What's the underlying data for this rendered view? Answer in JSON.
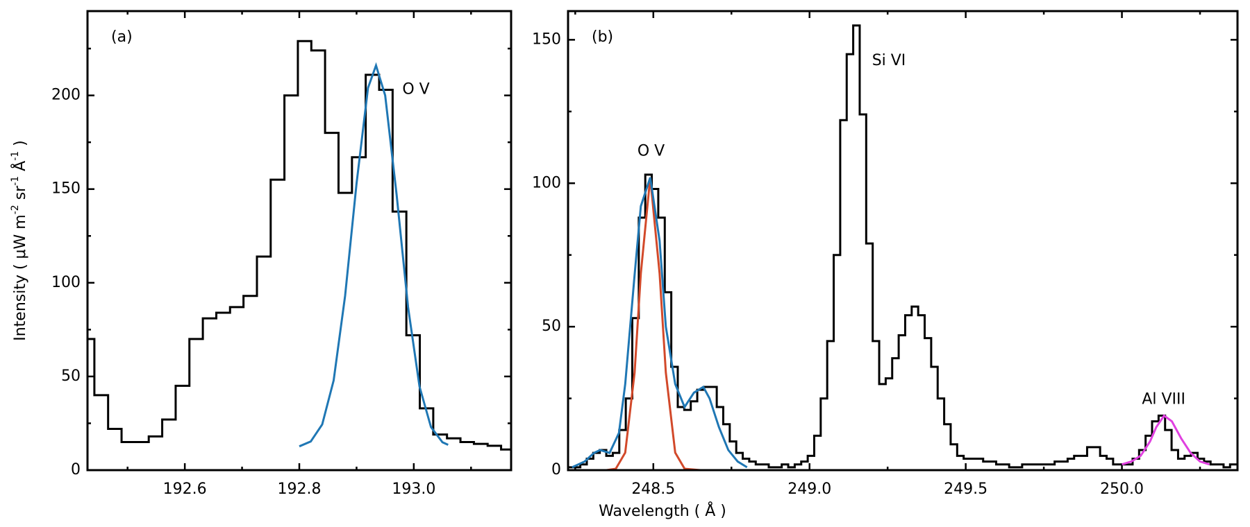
{
  "chart_data": [
    {
      "type": "line",
      "panel_label": "(a)",
      "ylabel": [
        "Intensity ( μW m",
        "-2",
        " sr",
        "-1",
        " Å",
        "-1",
        " )"
      ],
      "xlim": [
        192.43,
        193.17
      ],
      "xticks": [
        192.6,
        192.8,
        {
          "value": 193,
          "label": "193.0"
        }
      ],
      "xminorticks": [
        192.5,
        192.7,
        192.9,
        193.1
      ],
      "ylim": [
        0,
        245
      ],
      "yticks": [
        0,
        50,
        100,
        150,
        200
      ],
      "yminorticks": [
        25,
        75,
        125,
        175,
        225
      ],
      "annotations": [
        {
          "text": "O V",
          "x": 192.98,
          "y": 203
        }
      ],
      "series": [
        {
          "type": "step",
          "color": "#000000",
          "x": [
            192.43,
            192.454,
            192.478,
            192.501,
            192.525,
            192.549,
            192.572,
            192.596,
            192.62,
            192.643,
            192.667,
            192.691,
            192.714,
            192.738,
            192.762,
            192.786,
            192.809,
            192.833,
            192.857,
            192.88,
            192.904,
            192.928,
            192.951,
            192.975,
            192.999,
            193.022,
            193.046,
            193.07,
            193.093,
            193.117,
            193.141,
            193.164
          ],
          "values": [
            70,
            40,
            22,
            15,
            15,
            18,
            27,
            45,
            70,
            81,
            84,
            87,
            93,
            114,
            155,
            200,
            229,
            224,
            180,
            148,
            167,
            211,
            203,
            138,
            72,
            33,
            19,
            17,
            15,
            14,
            13,
            11
          ]
        },
        {
          "type": "line",
          "color": "#1f77b4",
          "x": [
            192.8,
            192.82,
            192.84,
            192.86,
            192.88,
            192.9,
            192.92,
            192.934,
            192.95,
            192.97,
            192.99,
            193.01,
            193.03,
            193.05,
            193.06
          ],
          "values": [
            12.7,
            15.3,
            24.4,
            47.9,
            93,
            153,
            204,
            216,
            200,
            147,
            87,
            44.6,
            23,
            14.9,
            13.5
          ]
        }
      ]
    },
    {
      "type": "line",
      "panel_label": "(b)",
      "xlabel": "Wavelength ( Å )",
      "xlim": [
        248.227,
        250.37
      ],
      "xticks": [
        248.5,
        {
          "value": 249,
          "label": "249.0"
        },
        249.5,
        {
          "value": 250,
          "label": "250.0"
        }
      ],
      "xminorticks": [
        248.25,
        248.75,
        249.25,
        249.75,
        250.25
      ],
      "ylim": [
        0,
        160
      ],
      "yticks": [
        0,
        50,
        100,
        150
      ],
      "yminorticks": [
        25,
        75,
        125
      ],
      "annotations": [
        {
          "text": "O V",
          "x": 248.449,
          "y": 111
        },
        {
          "text": "Si VI",
          "x": 249.2,
          "y": 142.6
        },
        {
          "text": "Al VIII",
          "x": 250.064,
          "y": 24.5
        }
      ],
      "series": [
        {
          "type": "step",
          "color": "#000000",
          "x": [
            248.235,
            248.2558,
            248.2766,
            248.2974,
            248.3182,
            248.339,
            248.3598,
            248.3806,
            248.4014,
            248.4222,
            248.443,
            248.4638,
            248.4846,
            248.5054,
            248.5262,
            248.547,
            248.5678,
            248.5886,
            248.6094,
            248.6302,
            248.651,
            248.6718,
            248.6926,
            248.7134,
            248.7342,
            248.755,
            248.7758,
            248.7966,
            248.8174,
            248.8382,
            248.859,
            248.8798,
            248.9006,
            248.9214,
            248.9422,
            248.963,
            248.9838,
            249.0046,
            249.0254,
            249.0462,
            249.067,
            249.0878,
            249.1086,
            249.1294,
            249.1502,
            249.171,
            249.1918,
            249.2126,
            249.2334,
            249.2542,
            249.275,
            249.2958,
            249.3166,
            249.3374,
            249.3582,
            249.379,
            249.3998,
            249.4206,
            249.4414,
            249.4622,
            249.483,
            249.5038,
            249.5246,
            249.5454,
            249.5662,
            249.587,
            249.6078,
            249.6286,
            249.6494,
            249.6702,
            249.691,
            249.7118,
            249.7326,
            249.7534,
            249.7742,
            249.795,
            249.8158,
            249.8366,
            249.8574,
            249.8782,
            249.899,
            249.9198,
            249.9406,
            249.9614,
            249.9822,
            250.003,
            250.0238,
            250.0446,
            250.0654,
            250.0862,
            250.107,
            250.1278,
            250.1486,
            250.1694,
            250.1902,
            250.211,
            250.2318,
            250.2526,
            250.2734,
            250.2942,
            250.315,
            250.3358,
            250.3566
          ],
          "values": [
            1,
            1,
            2,
            4,
            6,
            7,
            5,
            6,
            14,
            25,
            53,
            88,
            103,
            98,
            88,
            62,
            36,
            22,
            21,
            24,
            28,
            29,
            29,
            22,
            16,
            10,
            6,
            4,
            3,
            2,
            2,
            1,
            1,
            2,
            1,
            2,
            3,
            5,
            12,
            25,
            45,
            75,
            122,
            145,
            155,
            124,
            79,
            45,
            30,
            32,
            39,
            47,
            54,
            57,
            54,
            46,
            36,
            25,
            16,
            9,
            5,
            4,
            4,
            4,
            3,
            3,
            2,
            2,
            1,
            1,
            2,
            2,
            2,
            2,
            2,
            3,
            3,
            4,
            5,
            5,
            8,
            8,
            5,
            4,
            2,
            2,
            2,
            4,
            7,
            12,
            17,
            19,
            14,
            7,
            4,
            5,
            6,
            4,
            3,
            2,
            2,
            1,
            2
          ]
        },
        {
          "type": "line",
          "color": "#d2492a",
          "x": [
            248.35,
            248.38,
            248.41,
            248.44,
            248.46,
            248.49,
            248.52,
            248.54,
            248.57,
            248.6,
            248.65
          ],
          "values": [
            0,
            0.5,
            6.1,
            34,
            68.6,
            102,
            68.6,
            34,
            6.1,
            0.5,
            0
          ]
        },
        {
          "type": "line",
          "color": "#1f77b4",
          "x": [
            248.24,
            248.28,
            248.31,
            248.33,
            248.36,
            248.39,
            248.41,
            248.44,
            248.46,
            248.49,
            248.52,
            248.54,
            248.57,
            248.6,
            248.63,
            248.66,
            248.68,
            248.71,
            248.74,
            248.77,
            248.8
          ],
          "values": [
            1,
            3,
            6,
            7,
            6,
            13,
            30,
            68,
            92,
            102,
            80,
            50,
            30,
            22,
            27,
            29,
            25,
            15,
            7,
            3,
            1
          ]
        },
        {
          "type": "line",
          "color": "#e040e0",
          "x": [
            250.0,
            250.03,
            250.06,
            250.09,
            250.11,
            250.135,
            250.16,
            250.19,
            250.22,
            250.25,
            250.28
          ],
          "values": [
            2,
            3,
            5,
            10,
            15,
            19,
            17,
            11,
            6,
            3,
            2
          ]
        }
      ]
    }
  ]
}
